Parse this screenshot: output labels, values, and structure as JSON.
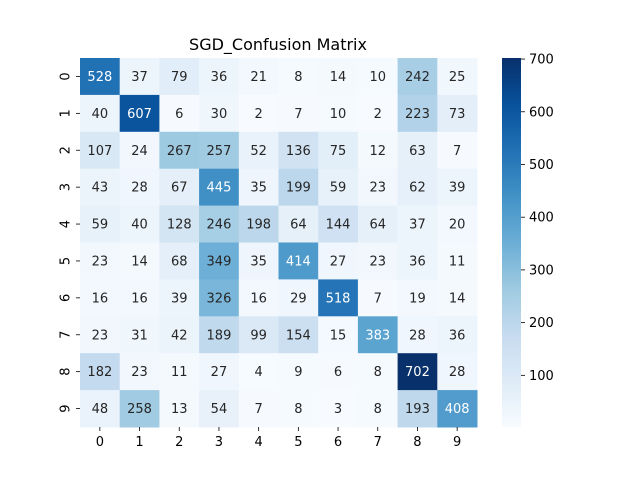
{
  "chart_data": {
    "type": "heatmap",
    "title": "SGD_Confusion Matrix",
    "xlabel": "",
    "ylabel": "",
    "x_categories": [
      "0",
      "1",
      "2",
      "3",
      "4",
      "5",
      "6",
      "7",
      "8",
      "9"
    ],
    "y_categories": [
      "0",
      "1",
      "2",
      "3",
      "4",
      "5",
      "6",
      "7",
      "8",
      "9"
    ],
    "values": [
      [
        528,
        37,
        79,
        36,
        21,
        8,
        14,
        10,
        242,
        25
      ],
      [
        40,
        607,
        6,
        30,
        2,
        7,
        10,
        2,
        223,
        73
      ],
      [
        107,
        24,
        267,
        257,
        52,
        136,
        75,
        12,
        63,
        7
      ],
      [
        43,
        28,
        67,
        445,
        35,
        199,
        59,
        23,
        62,
        39
      ],
      [
        59,
        40,
        128,
        246,
        198,
        64,
        144,
        64,
        37,
        20
      ],
      [
        23,
        14,
        68,
        349,
        35,
        414,
        27,
        23,
        36,
        11
      ],
      [
        16,
        16,
        39,
        326,
        16,
        29,
        518,
        7,
        19,
        14
      ],
      [
        23,
        31,
        42,
        189,
        99,
        154,
        15,
        383,
        28,
        36
      ],
      [
        182,
        23,
        11,
        27,
        4,
        9,
        6,
        8,
        702,
        28
      ],
      [
        48,
        258,
        13,
        54,
        7,
        8,
        3,
        8,
        193,
        408
      ]
    ],
    "colormap": "Blues",
    "colorbar": {
      "range": [
        2,
        702
      ],
      "ticks": [
        100,
        200,
        300,
        400,
        500,
        600,
        700
      ]
    },
    "annotations": true
  }
}
